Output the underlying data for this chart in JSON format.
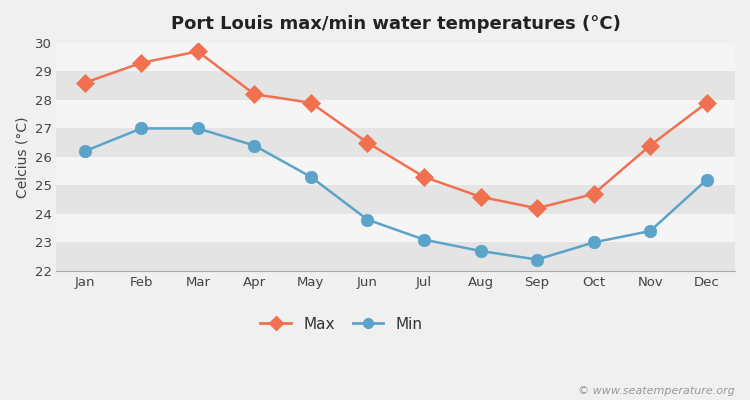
{
  "title": "Port Louis max/min water temperatures (°C)",
  "ylabel": "Celcius (°C)",
  "months": [
    "Jan",
    "Feb",
    "Mar",
    "Apr",
    "May",
    "Jun",
    "Jul",
    "Aug",
    "Sep",
    "Oct",
    "Nov",
    "Dec"
  ],
  "max_temps": [
    28.6,
    29.3,
    29.7,
    28.2,
    27.9,
    26.5,
    25.3,
    24.6,
    24.2,
    24.7,
    26.4,
    27.9
  ],
  "min_temps": [
    26.2,
    27.0,
    27.0,
    26.4,
    25.3,
    23.8,
    23.1,
    22.7,
    22.4,
    23.0,
    23.4,
    25.2
  ],
  "max_color": "#f07050",
  "min_color": "#5ba3c9",
  "bg_color": "#f0f0f0",
  "band_color_light": "#f5f5f5",
  "band_color_dark": "#e4e4e4",
  "ylim": [
    22,
    30
  ],
  "yticks": [
    22,
    23,
    24,
    25,
    26,
    27,
    28,
    29,
    30
  ],
  "watermark": "© www.seatemperature.org",
  "legend_max": "Max",
  "legend_min": "Min",
  "title_fontsize": 13,
  "label_fontsize": 10,
  "tick_fontsize": 9.5,
  "legend_fontsize": 11,
  "watermark_fontsize": 8,
  "marker_size_max": 9,
  "marker_size_min": 9,
  "line_width": 1.8
}
